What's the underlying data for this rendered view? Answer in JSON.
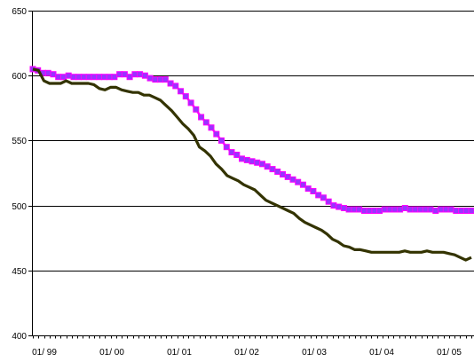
{
  "chart_data": {
    "type": "line",
    "title": "",
    "xlabel": "",
    "ylabel": "",
    "ylim": [
      400,
      650
    ],
    "yticks": [
      "400",
      "450",
      "500",
      "550",
      "600",
      "650"
    ],
    "xticks": [
      "01/ 99",
      "01/ 00",
      "01/ 01",
      "01/ 02",
      "01/ 03",
      "01/ 04",
      "01/ 05"
    ],
    "grid": "horizontal",
    "series": [
      {
        "color": "#ff00ff",
        "marker": "square",
        "marker_color": "#9933ff",
        "values": [
          605,
          604,
          602,
          602,
          601,
          599,
          599,
          600,
          599,
          599,
          599,
          599,
          599,
          599,
          599,
          599,
          599,
          601,
          601,
          599,
          601,
          601,
          600,
          598,
          597,
          597,
          597,
          594,
          592,
          588,
          584,
          579,
          574,
          568,
          564,
          560,
          555,
          550,
          545,
          541,
          539,
          536,
          535,
          534,
          533,
          532,
          530,
          528,
          526,
          524,
          522,
          520,
          518,
          516,
          513,
          511,
          508,
          506,
          503,
          500,
          499,
          498,
          497,
          497,
          497,
          496,
          496,
          496,
          496,
          497,
          497,
          497,
          497,
          498,
          497,
          497,
          497,
          497,
          497,
          496,
          497,
          497,
          497,
          496,
          496,
          496,
          496
        ]
      },
      {
        "color": "#333300",
        "marker": "none",
        "values": [
          605,
          604,
          596,
          594,
          594,
          594,
          596,
          594,
          594,
          594,
          594,
          593,
          590,
          589,
          591,
          591,
          589,
          588,
          587,
          587,
          585,
          585,
          583,
          581,
          577,
          573,
          568,
          563,
          559,
          554,
          545,
          542,
          538,
          532,
          528,
          523,
          521,
          519,
          516,
          514,
          512,
          508,
          504,
          502,
          500,
          498,
          496,
          494,
          490,
          487,
          485,
          483,
          481,
          478,
          474,
          472,
          469,
          468,
          466,
          466,
          465,
          464,
          464,
          464,
          464,
          464,
          464,
          465,
          464,
          464,
          464,
          465,
          464,
          464,
          464,
          463,
          462,
          460,
          458,
          460
        ]
      }
    ]
  }
}
